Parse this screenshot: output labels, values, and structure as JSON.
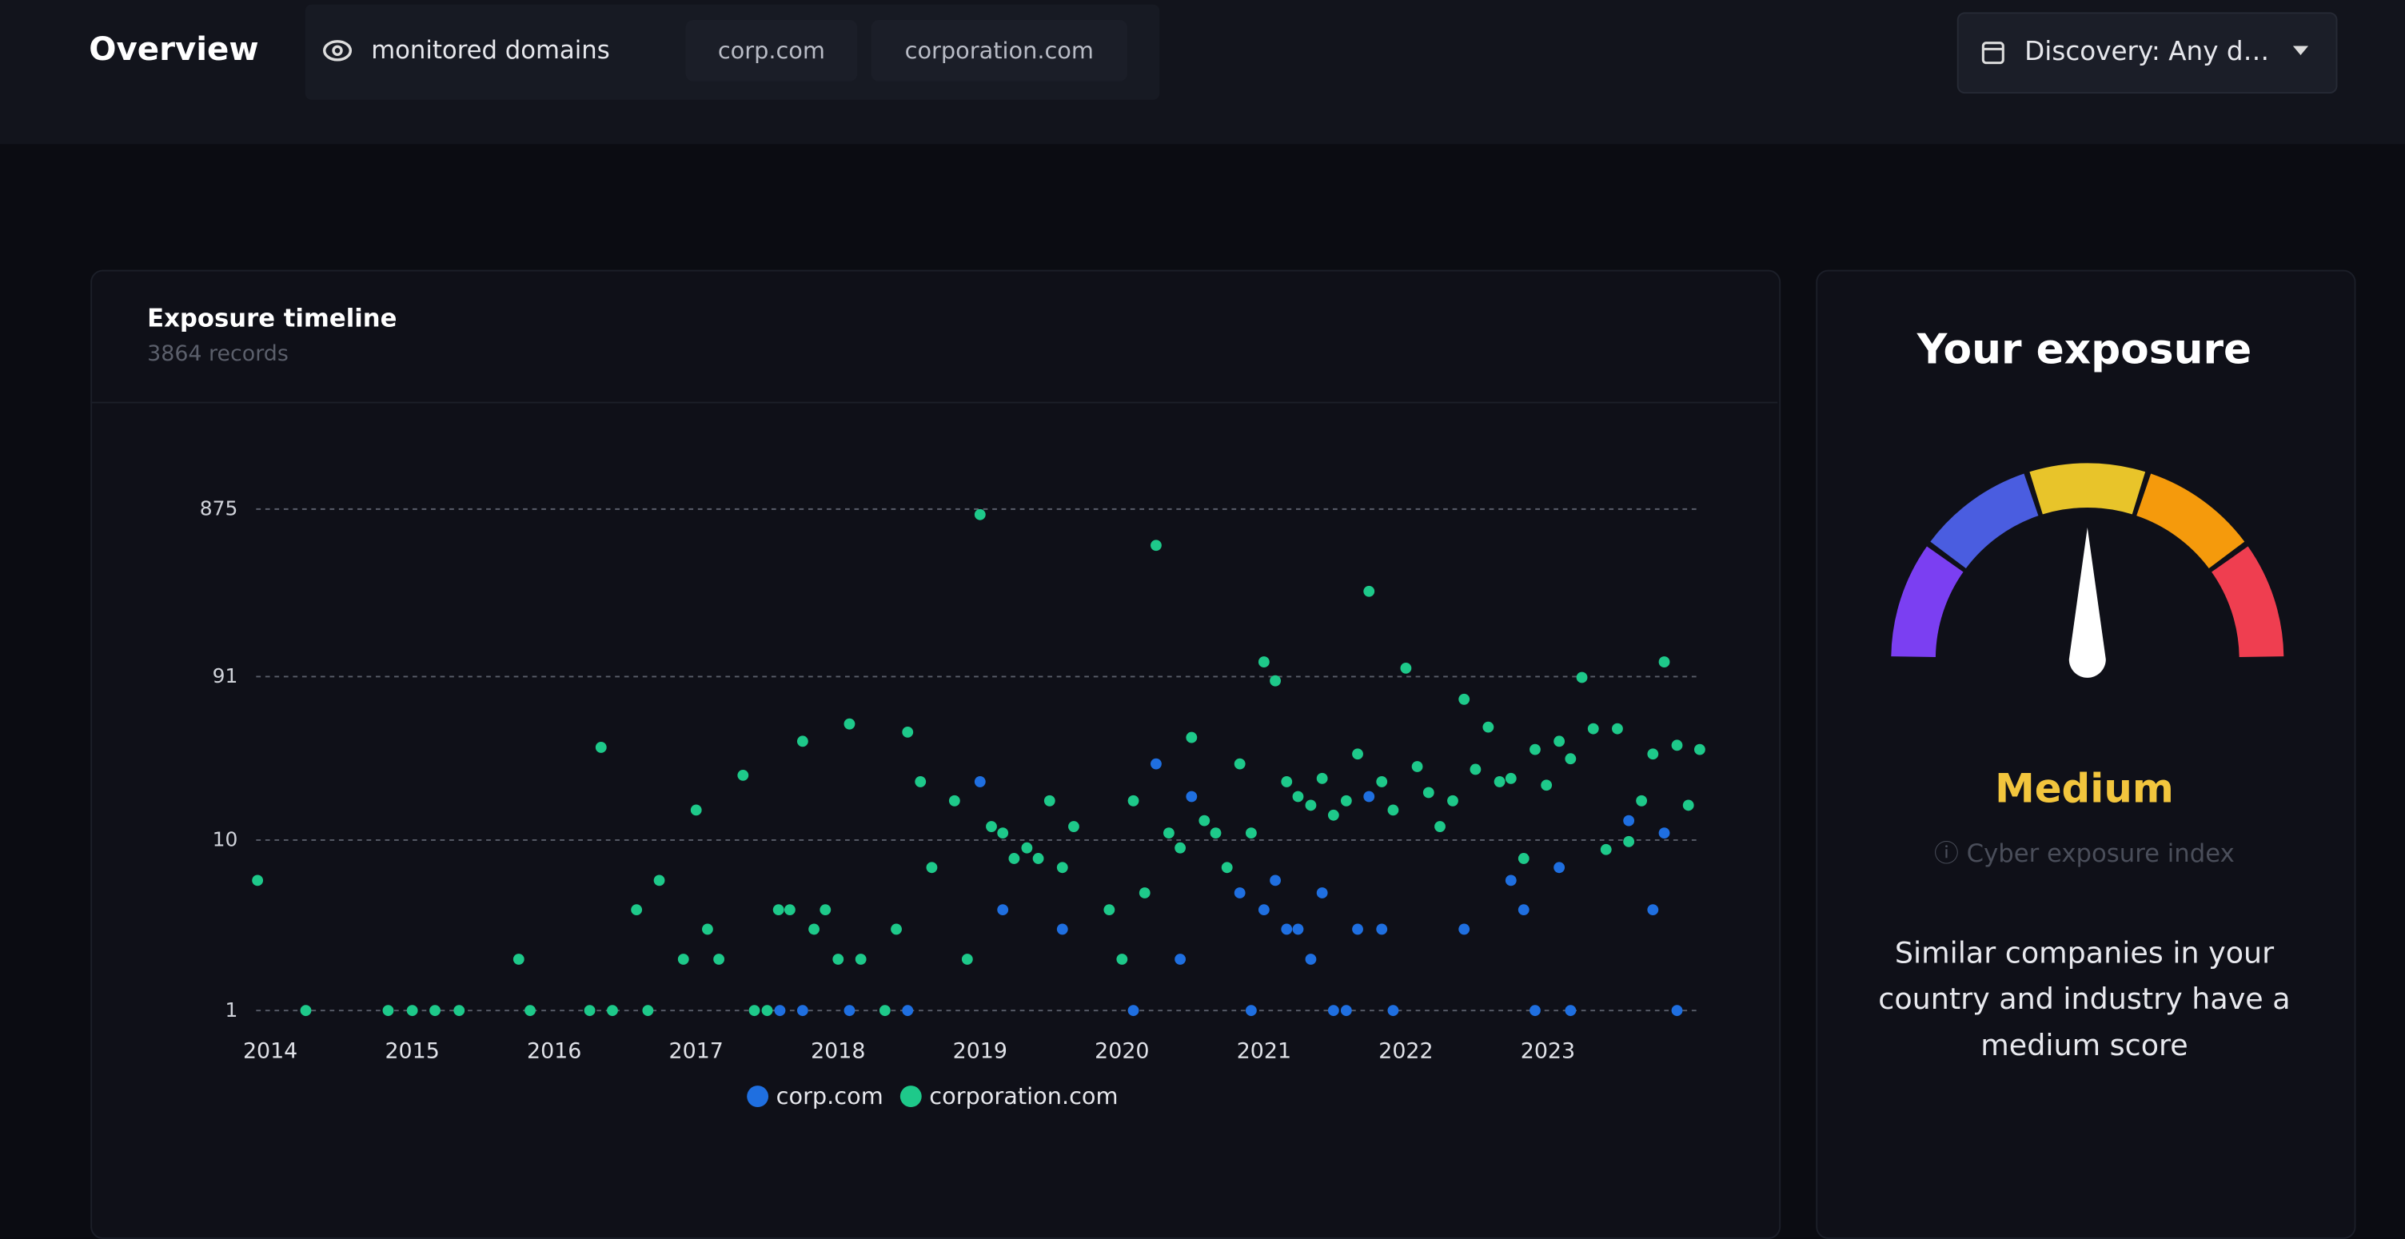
{
  "header": {
    "title": "Overview",
    "filter_label": "monitored domains",
    "domains": [
      "corp.com",
      "corporation.com"
    ],
    "date_filter": "Discovery: Any d…"
  },
  "chart_data": {
    "type": "scatter",
    "title": "Exposure timeline",
    "subtitle": "3864 records",
    "log_scale": true,
    "grid": true,
    "legend": "bottom",
    "xlim": [
      2013.9,
      2024.1
    ],
    "xticks": [
      2014,
      2015,
      2016,
      2017,
      2018,
      2019,
      2020,
      2021,
      2022,
      2023
    ],
    "ylim": [
      1,
      875
    ],
    "yticks": [
      1,
      10,
      91,
      875
    ],
    "series": [
      {
        "name": "corp.com",
        "color": "#1f6fe0",
        "x": [
          2017.59,
          2017.75,
          2018.08,
          2018.49,
          2019.0,
          2019.16,
          2019.58,
          2020.08,
          2020.24,
          2020.41,
          2020.49,
          2020.83,
          2020.91,
          2021.0,
          2021.08,
          2021.16,
          2021.24,
          2021.33,
          2021.41,
          2021.49,
          2021.58,
          2021.66,
          2021.74,
          2021.83,
          2021.91,
          2022.41,
          2022.74,
          2022.83,
          2022.91,
          2023.08,
          2023.16,
          2023.57,
          2023.74,
          2023.82,
          2023.91
        ],
        "values": [
          1,
          1,
          1,
          1,
          22,
          3.9,
          3,
          1,
          28,
          2,
          18,
          4.9,
          1,
          3.9,
          5.8,
          3,
          3,
          2,
          4.9,
          1,
          1,
          3,
          18,
          3,
          1,
          3,
          5.8,
          3.9,
          1,
          6.9,
          1,
          13,
          3.9,
          11,
          1
        ]
      },
      {
        "name": "corporation.com",
        "color": "#1ec98a",
        "x": [
          2013.91,
          2014.25,
          2014.83,
          2015.0,
          2015.16,
          2015.33,
          2015.75,
          2015.83,
          2016.25,
          2016.33,
          2016.41,
          2016.58,
          2016.66,
          2016.74,
          2016.91,
          2017.0,
          2017.08,
          2017.16,
          2017.33,
          2017.41,
          2017.5,
          2017.58,
          2017.66,
          2017.75,
          2017.83,
          2017.91,
          2018.0,
          2018.08,
          2018.16,
          2018.33,
          2018.41,
          2018.49,
          2018.58,
          2018.66,
          2018.82,
          2018.91,
          2019.0,
          2019.08,
          2019.16,
          2019.24,
          2019.33,
          2019.41,
          2019.49,
          2019.58,
          2019.66,
          2019.91,
          2020.0,
          2020.08,
          2020.16,
          2020.24,
          2020.33,
          2020.41,
          2020.49,
          2020.58,
          2020.66,
          2020.74,
          2020.83,
          2020.91,
          2021.0,
          2021.08,
          2021.16,
          2021.24,
          2021.33,
          2021.41,
          2021.49,
          2021.58,
          2021.66,
          2021.74,
          2021.83,
          2021.91,
          2022.0,
          2022.08,
          2022.16,
          2022.24,
          2022.33,
          2022.41,
          2022.49,
          2022.58,
          2022.66,
          2022.74,
          2022.83,
          2022.91,
          2022.99,
          2023.08,
          2023.16,
          2023.24,
          2023.32,
          2023.41,
          2023.49,
          2023.57,
          2023.66,
          2023.74,
          2023.82,
          2023.91,
          2023.99,
          2024.07
        ],
        "values": [
          5.8,
          1,
          1,
          1,
          1,
          1,
          2,
          1,
          1,
          35,
          1,
          3.9,
          1,
          5.8,
          2,
          15,
          3,
          2,
          24,
          1,
          1,
          3.9,
          3.9,
          38,
          3,
          3.9,
          2,
          48,
          2,
          1,
          3,
          43,
          22,
          6.9,
          17,
          2,
          812,
          12,
          11,
          7.8,
          9,
          7.8,
          17,
          6.9,
          12,
          3.9,
          2,
          17,
          4.9,
          536,
          11,
          9,
          40,
          13,
          11,
          6.9,
          28,
          11,
          111,
          86,
          22,
          18,
          16,
          23,
          14,
          17,
          32,
          288,
          22,
          15,
          102,
          27,
          19,
          12,
          17,
          67,
          26,
          46,
          22,
          23,
          7.8,
          34,
          21,
          38,
          30,
          90,
          45,
          8.8,
          45,
          9.8,
          17,
          32,
          111,
          36,
          16,
          34
        ]
      }
    ]
  },
  "exposure": {
    "title": "Your exposure",
    "level": "Medium",
    "index_label": "Cyber exposure index",
    "description": "Similar companies in your country and industry have a medium score"
  }
}
